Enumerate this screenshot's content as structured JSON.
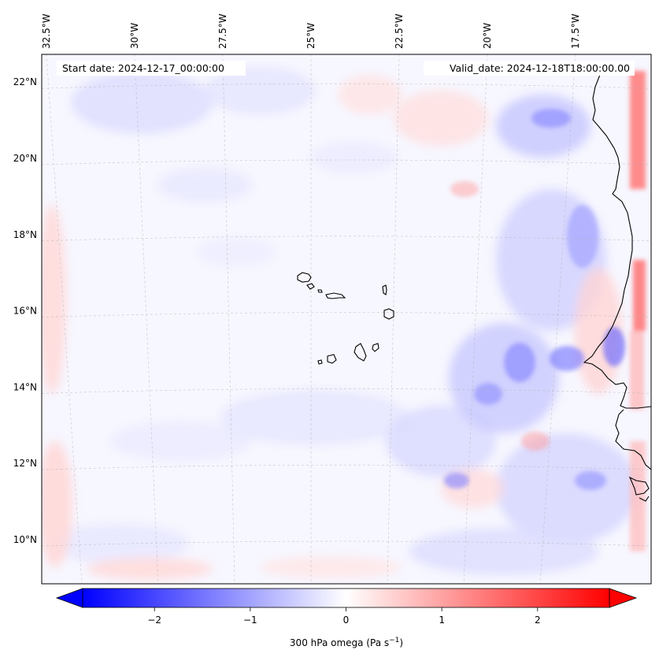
{
  "header": {
    "start_date": "Start date: 2024-12-17_00:00:00",
    "valid_date": "Valid_date: 2024-12-18T18:00:00.00"
  },
  "map": {
    "field": "300 hPa omega",
    "projection": "lambert-conformal",
    "lon_range": [
      -33.0,
      -15.5
    ],
    "lat_range": [
      8.9,
      22.7
    ],
    "coastline_color": "#000000",
    "gridline_color": "#b0b0b0"
  },
  "lon_labels": [
    {
      "lon": -32.5,
      "text": "32.5°W"
    },
    {
      "lon": -30.0,
      "text": "30°W"
    },
    {
      "lon": -27.5,
      "text": "27.5°W"
    },
    {
      "lon": -25.0,
      "text": "25°W"
    },
    {
      "lon": -22.5,
      "text": "22.5°W"
    },
    {
      "lon": -20.0,
      "text": "20°W"
    },
    {
      "lon": -17.5,
      "text": "17.5°W"
    }
  ],
  "lat_labels": [
    {
      "lat": 22,
      "text": "22°N"
    },
    {
      "lat": 20,
      "text": "20°N"
    },
    {
      "lat": 18,
      "text": "18°N"
    },
    {
      "lat": 16,
      "text": "16°N"
    },
    {
      "lat": 14,
      "text": "14°N"
    },
    {
      "lat": 12,
      "text": "12°N"
    },
    {
      "lat": 10,
      "text": "10°N"
    }
  ],
  "colorbar": {
    "label_text": "300 hPa omega (Pa s",
    "label_sup": "−1",
    "label_close": ")",
    "min": -2.75,
    "max": 2.75,
    "colormap": "bwr",
    "extend": "both",
    "ticks": [
      {
        "value": -2,
        "text": "−2"
      },
      {
        "value": -1,
        "text": "−1"
      },
      {
        "value": 0,
        "text": "0"
      },
      {
        "value": 1,
        "text": "1"
      },
      {
        "value": 2,
        "text": "2"
      }
    ]
  }
}
